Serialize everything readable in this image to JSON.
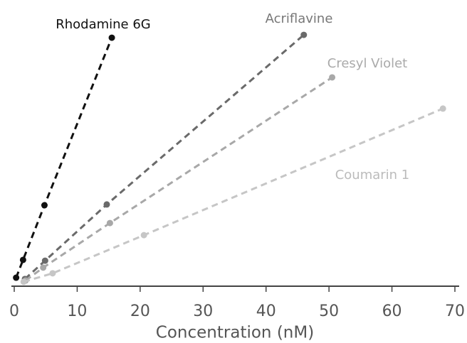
{
  "chart_data": {
    "type": "line",
    "xlabel": "Concentration (nM)",
    "xlim": [
      0,
      70
    ],
    "xticks": [
      0,
      10,
      20,
      30,
      40,
      50,
      60,
      70
    ],
    "ylim": [
      0,
      100
    ],
    "series": [
      {
        "name": "Rhodamine 6G",
        "color": "#111111",
        "x": [
          0.3,
          1.4,
          4.8,
          15.5
        ],
        "values": [
          3.3,
          10.2,
          31.4,
          96.4
        ]
      },
      {
        "name": "Acriflavine",
        "color": "#6a6a6a",
        "x": [
          1.7,
          4.9,
          14.7,
          46.0
        ],
        "values": [
          2.8,
          9.9,
          31.7,
          97.5
        ]
      },
      {
        "name": "Cresyl Violet",
        "color": "#a8a8a8",
        "x": [
          1.8,
          4.6,
          15.2,
          50.5
        ],
        "values": [
          2.2,
          7.2,
          24.5,
          81.0
        ]
      },
      {
        "name": "Coumarin 1",
        "color": "#c6c6c6",
        "x": [
          1.5,
          6.1,
          20.6,
          68.1
        ],
        "values": [
          1.7,
          5.0,
          19.8,
          68.9
        ]
      }
    ]
  }
}
